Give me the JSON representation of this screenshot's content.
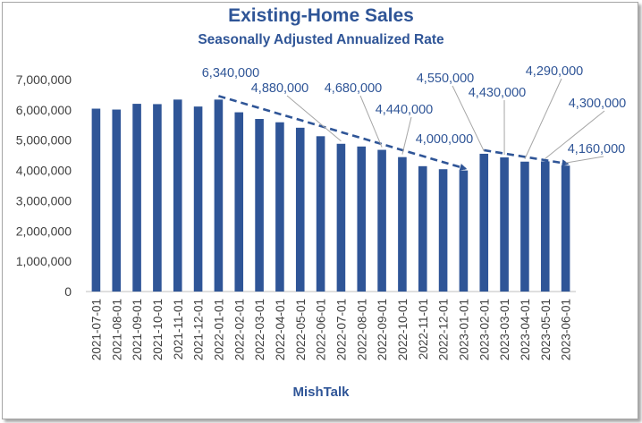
{
  "chart_data": {
    "type": "bar",
    "title": "Existing-Home Sales",
    "subtitle": "Seasonally Adjusted Annualized Rate",
    "xlabel": "MishTalk",
    "ylabel": "",
    "ylim": [
      0,
      7000000
    ],
    "yticks": [
      0,
      1000000,
      2000000,
      3000000,
      4000000,
      5000000,
      6000000,
      7000000
    ],
    "ytick_labels": [
      "0",
      "1,000,000",
      "2,000,000",
      "3,000,000",
      "4,000,000",
      "5,000,000",
      "6,000,000",
      "7,000,000"
    ],
    "categories": [
      "2021-07-01",
      "2021-08-01",
      "2021-09-01",
      "2021-10-01",
      "2021-11-01",
      "2021-12-01",
      "2022-01-01",
      "2022-02-01",
      "2022-03-01",
      "2022-04-01",
      "2022-05-01",
      "2022-06-01",
      "2022-07-01",
      "2022-08-01",
      "2022-09-01",
      "2022-10-01",
      "2022-11-01",
      "2022-12-01",
      "2023-01-01",
      "2023-02-01",
      "2023-03-01",
      "2023-04-01",
      "2023-05-01",
      "2023-06-01"
    ],
    "values": [
      6040000,
      6010000,
      6200000,
      6190000,
      6340000,
      6110000,
      6340000,
      5920000,
      5700000,
      5590000,
      5410000,
      5130000,
      4880000,
      4790000,
      4680000,
      4440000,
      4140000,
      4040000,
      4000000,
      4550000,
      4430000,
      4290000,
      4300000,
      4160000
    ],
    "bar_color": "#2f5597",
    "annotations": [
      {
        "category": "2022-01-01",
        "text": "6,340,000"
      },
      {
        "category": "2022-07-01",
        "text": "4,880,000"
      },
      {
        "category": "2022-09-01",
        "text": "4,680,000"
      },
      {
        "category": "2022-10-01",
        "text": "4,440,000"
      },
      {
        "category": "2023-01-01",
        "text": "4,000,000"
      },
      {
        "category": "2023-02-01",
        "text": "4,550,000"
      },
      {
        "category": "2023-03-01",
        "text": "4,430,000"
      },
      {
        "category": "2023-04-01",
        "text": "4,290,000"
      },
      {
        "category": "2023-05-01",
        "text": "4,300,000"
      },
      {
        "category": "2023-06-01",
        "text": "4,160,000"
      }
    ],
    "trend_lines": [
      {
        "from_category": "2022-01-01",
        "to_category": "2023-01-01",
        "style": "dashed"
      },
      {
        "from_category": "2023-02-01",
        "to_category": "2023-06-01",
        "style": "dashed"
      }
    ]
  }
}
